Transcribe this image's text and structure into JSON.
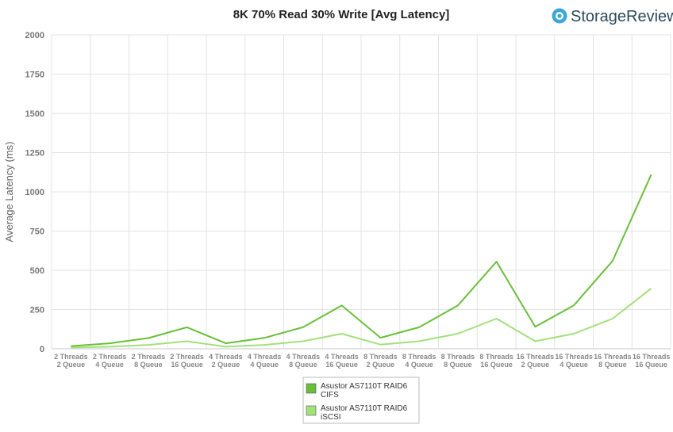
{
  "brand": {
    "name": "StorageReview",
    "logo_icon": "storagereview-logo-icon",
    "logo_color": "#3ba6d9",
    "text_color": "#2a4a5a"
  },
  "chart_data": {
    "type": "line",
    "title": "8K 70% Read 30% Write [Avg Latency]",
    "ylabel": "Average Latency (ms)",
    "xlabel": "",
    "ylim": [
      0,
      2000
    ],
    "yticks": [
      0,
      250,
      500,
      750,
      1000,
      1250,
      1500,
      1750,
      2000
    ],
    "grid": true,
    "legend_position": "bottom",
    "categories": [
      [
        "2 Threads",
        "2 Queue"
      ],
      [
        "2 Threads",
        "4 Queue"
      ],
      [
        "2 Threads",
        "8 Queue"
      ],
      [
        "2 Threads",
        "16 Queue"
      ],
      [
        "4 Threads",
        "2 Queue"
      ],
      [
        "4 Threads",
        "4 Queue"
      ],
      [
        "4 Threads",
        "8 Queue"
      ],
      [
        "4 Threads",
        "16 Queue"
      ],
      [
        "8 Threads",
        "2 Queue"
      ],
      [
        "8 Threads",
        "4 Queue"
      ],
      [
        "8 Threads",
        "8 Queue"
      ],
      [
        "8 Threads",
        "16 Queue"
      ],
      [
        "16 Threads",
        "2 Queue"
      ],
      [
        "16 Threads",
        "4 Queue"
      ],
      [
        "16 Threads",
        "8 Queue"
      ],
      [
        "16 Threads",
        "16 Queue"
      ]
    ],
    "series": [
      {
        "name": [
          "Asustor AS7110T RAID6",
          "CIFS"
        ],
        "color": "#6abf3a",
        "values": [
          17,
          35,
          68,
          137,
          35,
          69,
          138,
          276,
          70,
          137,
          276,
          555,
          140,
          277,
          560,
          1110
        ]
      },
      {
        "name": [
          "Asustor AS7110T RAID6",
          "iSCSI"
        ],
        "color": "#a3e07a",
        "values": [
          8,
          13,
          25,
          48,
          13,
          25,
          48,
          96,
          27,
          48,
          96,
          192,
          48,
          96,
          192,
          385
        ]
      }
    ]
  }
}
